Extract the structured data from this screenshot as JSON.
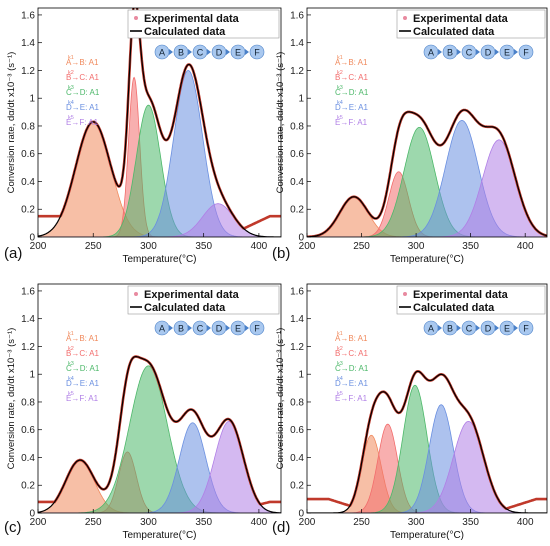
{
  "figure": {
    "legend_entries": [
      "Experimental data",
      "Calculated data"
    ],
    "step_labels": [
      "A→B: A1",
      "B→C: A1",
      "C→D: A1",
      "D→E: A1",
      "E→F: A1"
    ],
    "step_subscripts": [
      "k1",
      "k2",
      "k3",
      "k4",
      "k5"
    ],
    "chain_nodes": [
      "A",
      "B",
      "C",
      "D",
      "E",
      "F"
    ],
    "panel_labels": [
      "(a)",
      "(b)",
      "(c)",
      "(d)"
    ],
    "colors": {
      "experimental": "#c0392b",
      "calculated": "#000000",
      "peaks": [
        "#f08a5d",
        "#f26d6d",
        "#4db86a",
        "#6a8fe0",
        "#b07fe6"
      ],
      "node_fill": "#a9c8ef",
      "node_stroke": "#4a80c8",
      "arrow": "#4a80c8"
    }
  },
  "chart_data": [
    {
      "type": "area",
      "panel": "(a)",
      "xlabel": "Temperature(°C)",
      "ylabel": "Conversion rate, dα/dt x10⁻³ (s⁻¹)",
      "xlim": [
        200,
        420
      ],
      "ylim": [
        0,
        1.65
      ],
      "xticks": [
        200,
        250,
        300,
        350,
        400
      ],
      "yticks": [
        0,
        0.2,
        0.4,
        0.6,
        0.8,
        1,
        1.2,
        1.4,
        1.6
      ],
      "peaks": [
        {
          "step": "A→B",
          "center": 250,
          "height": 0.83,
          "width": 16
        },
        {
          "step": "B→C",
          "center": 287,
          "height": 1.15,
          "width": 5
        },
        {
          "step": "C→D",
          "center": 300,
          "height": 0.95,
          "width": 11
        },
        {
          "step": "D→E",
          "center": 336,
          "height": 1.2,
          "width": 13
        },
        {
          "step": "E→F",
          "center": 363,
          "height": 0.24,
          "width": 14
        }
      ],
      "baseline": 0.15
    },
    {
      "type": "area",
      "panel": "(b)",
      "xlabel": "Temperature(°C)",
      "ylabel": "Conversion rate, dα/dt x10⁻³ (s⁻¹)",
      "xlim": [
        200,
        420
      ],
      "ylim": [
        0,
        1.65
      ],
      "xticks": [
        200,
        250,
        300,
        350,
        400
      ],
      "yticks": [
        0,
        0.2,
        0.4,
        0.6,
        0.8,
        1,
        1.2,
        1.4,
        1.6
      ],
      "peaks": [
        {
          "step": "A→B",
          "center": 243,
          "height": 0.29,
          "width": 13
        },
        {
          "step": "B→C",
          "center": 284,
          "height": 0.47,
          "width": 9
        },
        {
          "step": "C→D",
          "center": 303,
          "height": 0.79,
          "width": 14
        },
        {
          "step": "D→E",
          "center": 342,
          "height": 0.84,
          "width": 15
        },
        {
          "step": "E→F",
          "center": 376,
          "height": 0.7,
          "width": 15
        }
      ],
      "baseline": 0.0
    },
    {
      "type": "area",
      "panel": "(c)",
      "xlabel": "Temperature(°C)",
      "ylabel": "Conversion rate, dα/dt x10⁻³ (s⁻¹)",
      "xlim": [
        200,
        420
      ],
      "ylim": [
        0,
        1.65
      ],
      "xticks": [
        200,
        250,
        300,
        350,
        400
      ],
      "yticks": [
        0,
        0.2,
        0.4,
        0.6,
        0.8,
        1,
        1.2,
        1.4,
        1.6
      ],
      "peaks": [
        {
          "step": "A→B",
          "center": 238,
          "height": 0.38,
          "width": 13
        },
        {
          "step": "B→C",
          "center": 281,
          "height": 0.44,
          "width": 8
        },
        {
          "step": "C→D",
          "center": 300,
          "height": 1.06,
          "width": 17
        },
        {
          "step": "D→E",
          "center": 340,
          "height": 0.65,
          "width": 12
        },
        {
          "step": "E→F",
          "center": 373,
          "height": 0.66,
          "width": 13
        }
      ],
      "baseline": 0.08
    },
    {
      "type": "area",
      "panel": "(d)",
      "xlabel": "Temperature(°C)",
      "ylabel": "Conversion rate, dα/dt x10⁻³ (s⁻¹)",
      "xlim": [
        200,
        420
      ],
      "ylim": [
        0,
        1.65
      ],
      "xticks": [
        200,
        250,
        300,
        350,
        400
      ],
      "yticks": [
        0,
        0.2,
        0.4,
        0.6,
        0.8,
        1,
        1.2,
        1.4,
        1.6
      ],
      "peaks": [
        {
          "step": "A→B",
          "center": 259,
          "height": 0.56,
          "width": 9
        },
        {
          "step": "B→C",
          "center": 274,
          "height": 0.64,
          "width": 9
        },
        {
          "step": "C→D",
          "center": 299,
          "height": 0.92,
          "width": 11
        },
        {
          "step": "D→E",
          "center": 323,
          "height": 0.78,
          "width": 11
        },
        {
          "step": "E→F",
          "center": 348,
          "height": 0.66,
          "width": 14
        }
      ],
      "baseline": 0.1
    }
  ]
}
